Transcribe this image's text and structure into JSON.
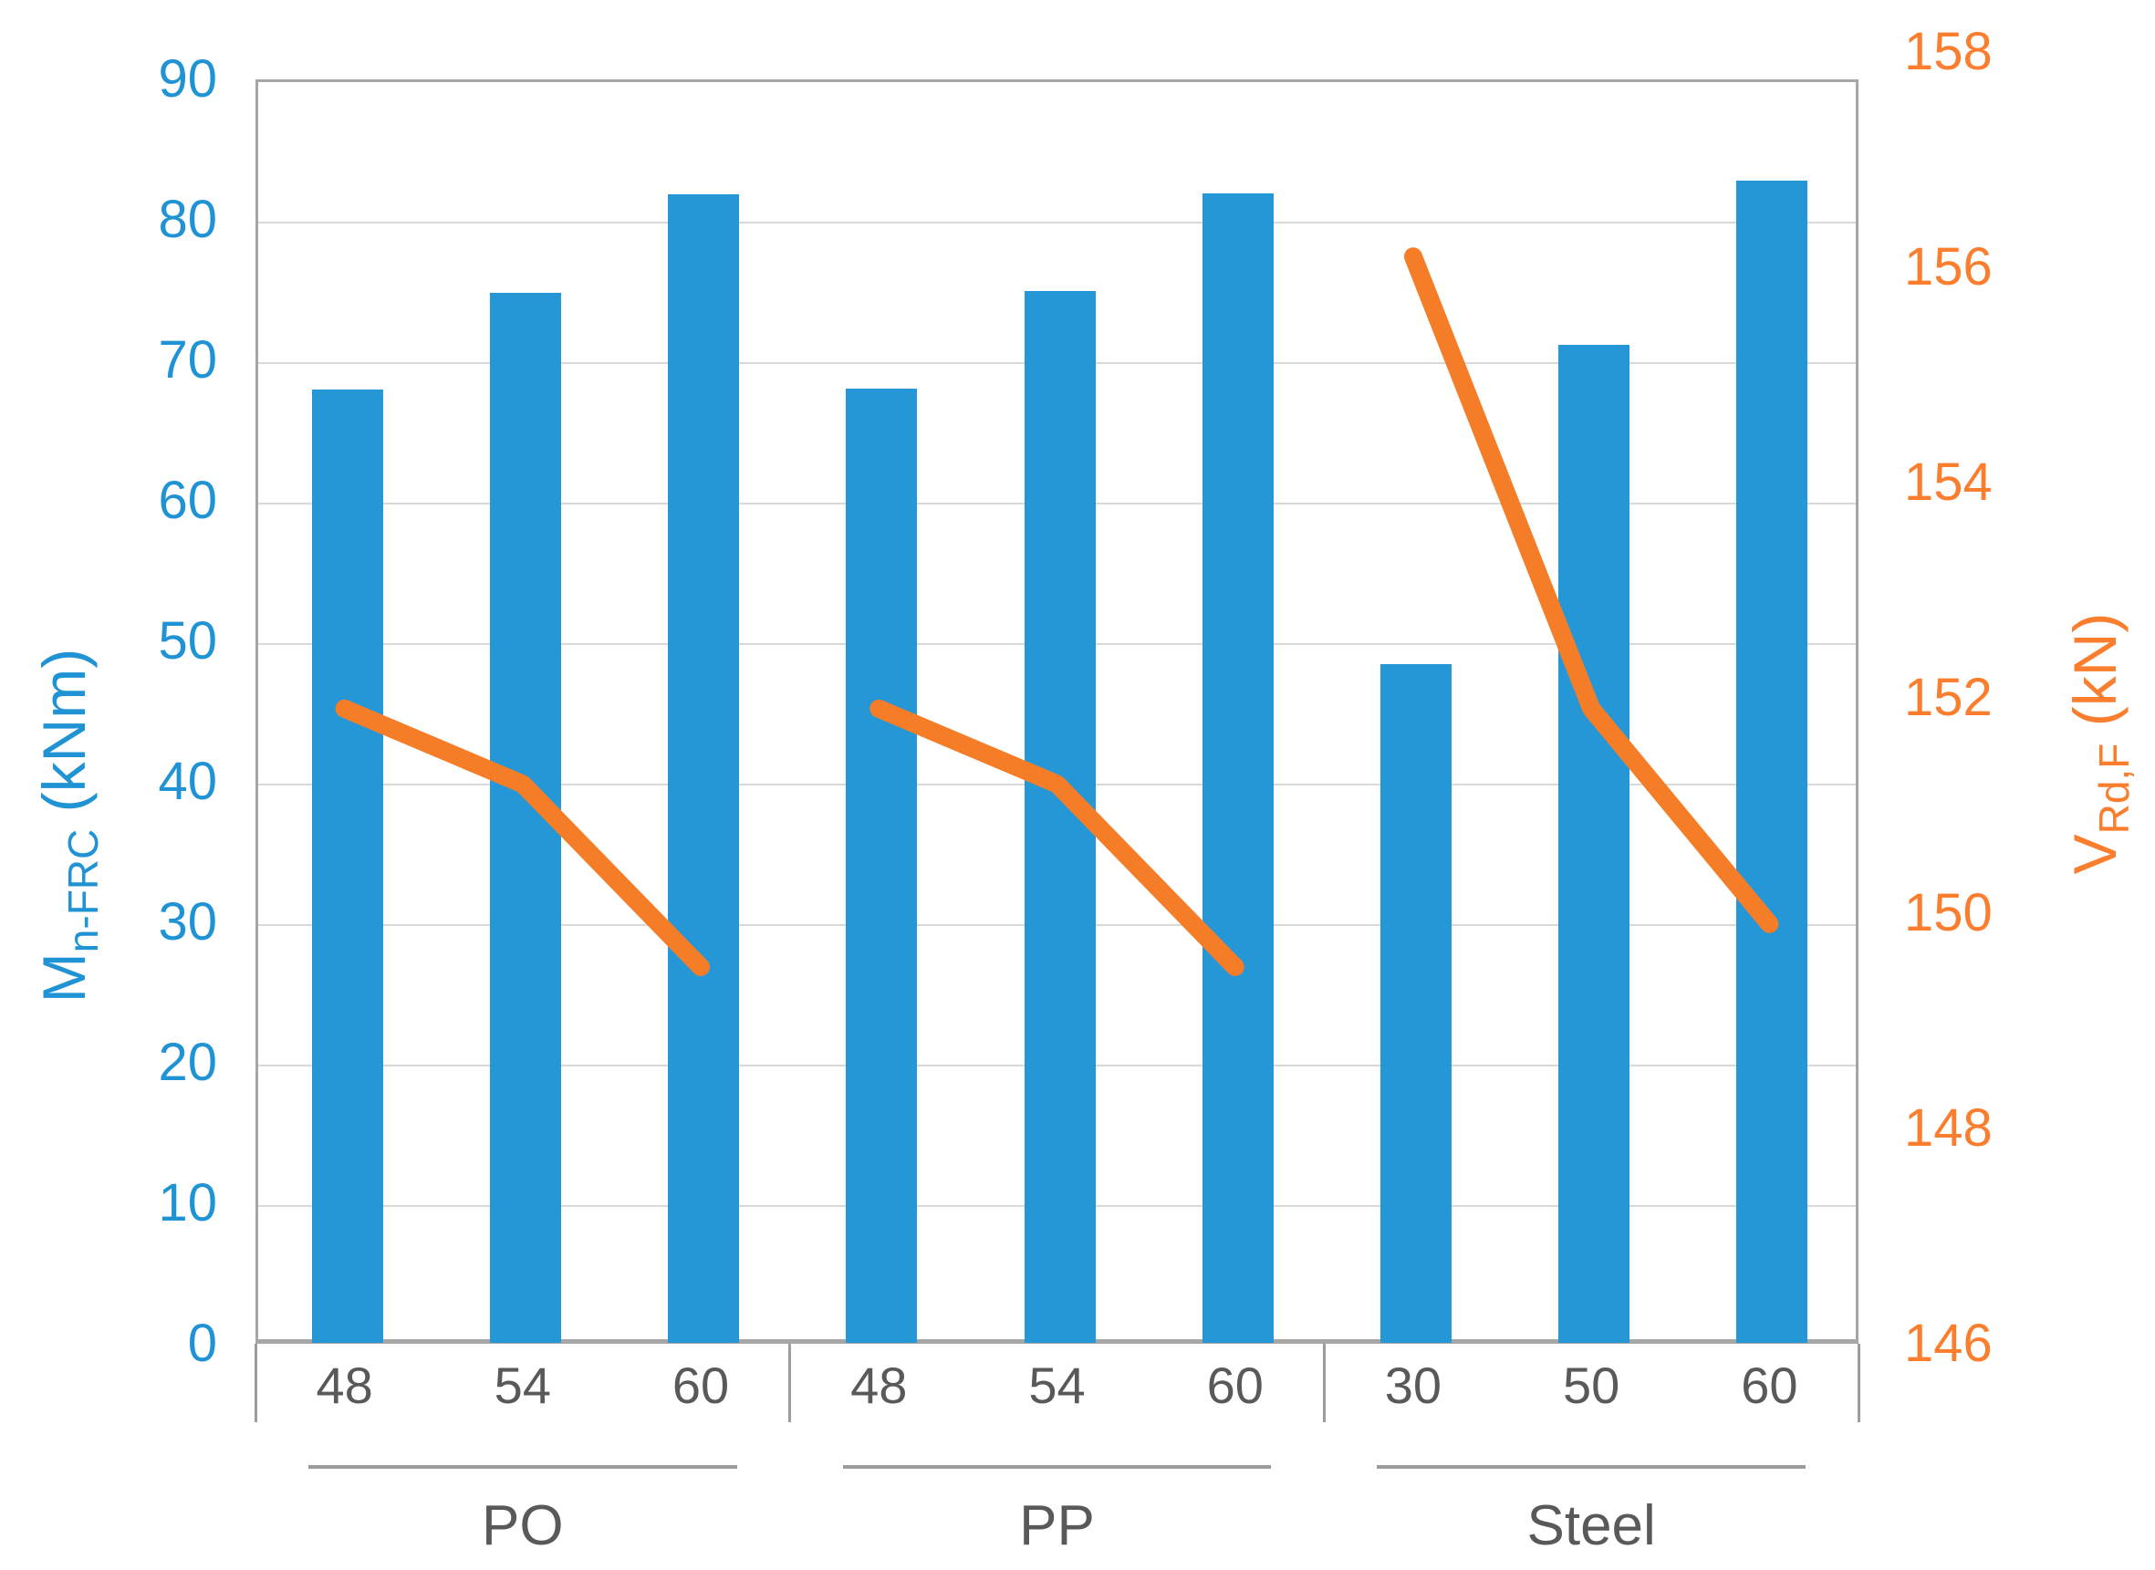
{
  "chart_data": {
    "type": "bar",
    "subtype": "combo-bar-line-dual-axis",
    "title": "",
    "groups": [
      {
        "label": "PO",
        "categories": [
          "48",
          "54",
          "60"
        ],
        "bar_values": [
          68.1,
          75.0,
          82.0
        ],
        "line_values": [
          151.9,
          151.2,
          149.5
        ]
      },
      {
        "label": "PP",
        "categories": [
          "48",
          "54",
          "60"
        ],
        "bar_values": [
          68.2,
          75.1,
          82.1
        ],
        "line_values": [
          151.9,
          151.2,
          149.5
        ]
      },
      {
        "label": "Steel",
        "categories": [
          "30",
          "50",
          "60"
        ],
        "bar_values": [
          48.6,
          71.3,
          83.0
        ],
        "line_values": [
          156.1,
          151.9,
          149.9
        ]
      }
    ],
    "left_axis": {
      "label_main": "M",
      "label_sub": "n-FRC",
      "label_unit": " (kNm)",
      "min": 0,
      "max": 90,
      "tick_step": 10,
      "tick_labels": [
        "90",
        "80",
        "70",
        "60",
        "50",
        "40",
        "30",
        "20",
        "10",
        "0"
      ],
      "text_color": "#2093d5",
      "series": "bars"
    },
    "right_axis": {
      "label_main": "V",
      "label_sub": "Rd,F",
      "label_unit": " (kN)",
      "min": 146,
      "max": 158,
      "tick_step": 2,
      "tick_labels": [
        "158",
        "156",
        "154",
        "152",
        "150",
        "148",
        "146"
      ],
      "text_color": "#fa7e2e",
      "series": "line"
    },
    "bar_color": "#2697d6",
    "line_color": "#f57d27",
    "grid": true,
    "gridline_color": "#d9d9d9",
    "plot_border_color": "#a6a6a6",
    "category_text_color": "#595959",
    "legend": "none"
  }
}
